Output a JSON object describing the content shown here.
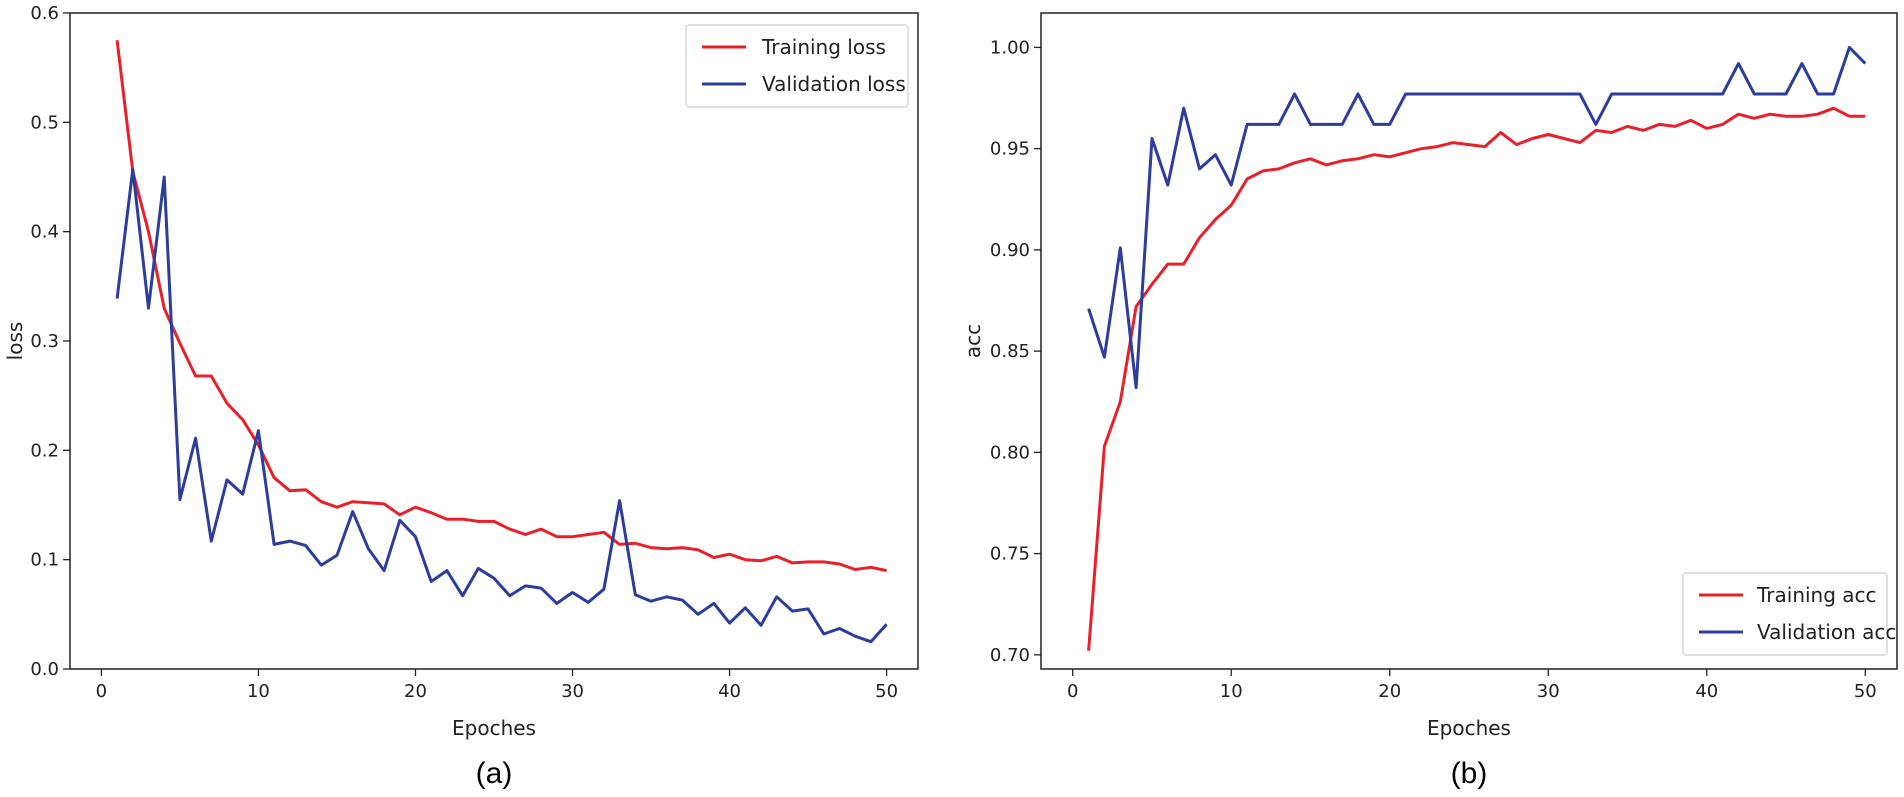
{
  "chart_data": [
    {
      "type": "line",
      "caption": "(a)",
      "xlabel": "Epoches",
      "ylabel": "loss",
      "xlim": [
        -2,
        52
      ],
      "ylim": [
        0.0,
        0.6
      ],
      "xticks": [
        0,
        10,
        20,
        30,
        40,
        50
      ],
      "yticks": [
        0.0,
        0.1,
        0.2,
        0.3,
        0.4,
        0.5,
        0.6
      ],
      "ytick_labels": [
        "0.0",
        "0.1",
        "0.2",
        "0.3",
        "0.4",
        "0.5",
        "0.6"
      ],
      "legend": "top-right",
      "grid": false,
      "x": [
        1,
        2,
        3,
        4,
        5,
        6,
        7,
        8,
        9,
        10,
        11,
        12,
        13,
        14,
        15,
        16,
        17,
        18,
        19,
        20,
        21,
        22,
        23,
        24,
        25,
        26,
        27,
        28,
        29,
        30,
        31,
        32,
        33,
        34,
        35,
        36,
        37,
        38,
        39,
        40,
        41,
        42,
        43,
        44,
        45,
        46,
        47,
        48,
        49,
        50
      ],
      "series": [
        {
          "name": "Training loss",
          "color": "#e8202a",
          "values": [
            0.575,
            0.455,
            0.4,
            0.33,
            0.298,
            0.268,
            0.268,
            0.243,
            0.228,
            0.205,
            0.175,
            0.163,
            0.164,
            0.153,
            0.148,
            0.153,
            0.152,
            0.151,
            0.141,
            0.148,
            0.143,
            0.137,
            0.137,
            0.135,
            0.135,
            0.128,
            0.123,
            0.128,
            0.121,
            0.121,
            0.123,
            0.125,
            0.114,
            0.115,
            0.111,
            0.11,
            0.111,
            0.109,
            0.102,
            0.105,
            0.1,
            0.099,
            0.103,
            0.097,
            0.098,
            0.098,
            0.096,
            0.091,
            0.093,
            0.09
          ]
        },
        {
          "name": "Validation loss",
          "color": "#2c3d9b",
          "values": [
            0.339,
            0.457,
            0.33,
            0.45,
            0.155,
            0.211,
            0.117,
            0.173,
            0.16,
            0.218,
            0.114,
            0.117,
            0.113,
            0.095,
            0.104,
            0.144,
            0.11,
            0.09,
            0.136,
            0.121,
            0.08,
            0.09,
            0.067,
            0.092,
            0.083,
            0.067,
            0.076,
            0.074,
            0.06,
            0.07,
            0.061,
            0.073,
            0.154,
            0.068,
            0.062,
            0.066,
            0.063,
            0.05,
            0.06,
            0.042,
            0.056,
            0.04,
            0.066,
            0.053,
            0.055,
            0.032,
            0.037,
            0.03,
            0.025,
            0.041
          ]
        }
      ]
    },
    {
      "type": "line",
      "caption": "(b)",
      "xlabel": "Epoches",
      "ylabel": "acc",
      "xlim": [
        -2,
        52
      ],
      "ylim": [
        0.693,
        1.017
      ],
      "xticks": [
        0,
        10,
        20,
        30,
        40,
        50
      ],
      "yticks": [
        0.7,
        0.75,
        0.8,
        0.85,
        0.9,
        0.95,
        1.0
      ],
      "ytick_labels": [
        "0.70",
        "0.75",
        "0.80",
        "0.85",
        "0.90",
        "0.95",
        "1.00"
      ],
      "legend": "bottom-right",
      "grid": false,
      "x": [
        1,
        2,
        3,
        4,
        5,
        6,
        7,
        8,
        9,
        10,
        11,
        12,
        13,
        14,
        15,
        16,
        17,
        18,
        19,
        20,
        21,
        22,
        23,
        24,
        25,
        26,
        27,
        28,
        29,
        30,
        31,
        32,
        33,
        34,
        35,
        36,
        37,
        38,
        39,
        40,
        41,
        42,
        43,
        44,
        45,
        46,
        47,
        48,
        49,
        50
      ],
      "series": [
        {
          "name": "Training acc",
          "color": "#e8202a",
          "values": [
            0.702,
            0.803,
            0.825,
            0.872,
            0.883,
            0.893,
            0.893,
            0.906,
            0.915,
            0.922,
            0.935,
            0.939,
            0.94,
            0.943,
            0.945,
            0.942,
            0.944,
            0.945,
            0.947,
            0.946,
            0.948,
            0.95,
            0.951,
            0.953,
            0.952,
            0.951,
            0.958,
            0.952,
            0.955,
            0.957,
            0.955,
            0.953,
            0.959,
            0.958,
            0.961,
            0.959,
            0.962,
            0.961,
            0.964,
            0.96,
            0.962,
            0.967,
            0.965,
            0.967,
            0.966,
            0.966,
            0.967,
            0.97,
            0.966,
            0.966
          ]
        },
        {
          "name": "Validation acc",
          "color": "#2c3d9b",
          "values": [
            0.871,
            0.847,
            0.901,
            0.832,
            0.955,
            0.932,
            0.97,
            0.94,
            0.947,
            0.932,
            0.962,
            0.962,
            0.962,
            0.977,
            0.962,
            0.962,
            0.962,
            0.977,
            0.962,
            0.962,
            0.977,
            0.977,
            0.977,
            0.977,
            0.977,
            0.977,
            0.977,
            0.977,
            0.977,
            0.977,
            0.977,
            0.977,
            0.962,
            0.977,
            0.977,
            0.977,
            0.977,
            0.977,
            0.977,
            0.977,
            0.977,
            0.992,
            0.977,
            0.977,
            0.977,
            0.992,
            0.977,
            0.977,
            1.0,
            0.992
          ]
        }
      ]
    }
  ]
}
